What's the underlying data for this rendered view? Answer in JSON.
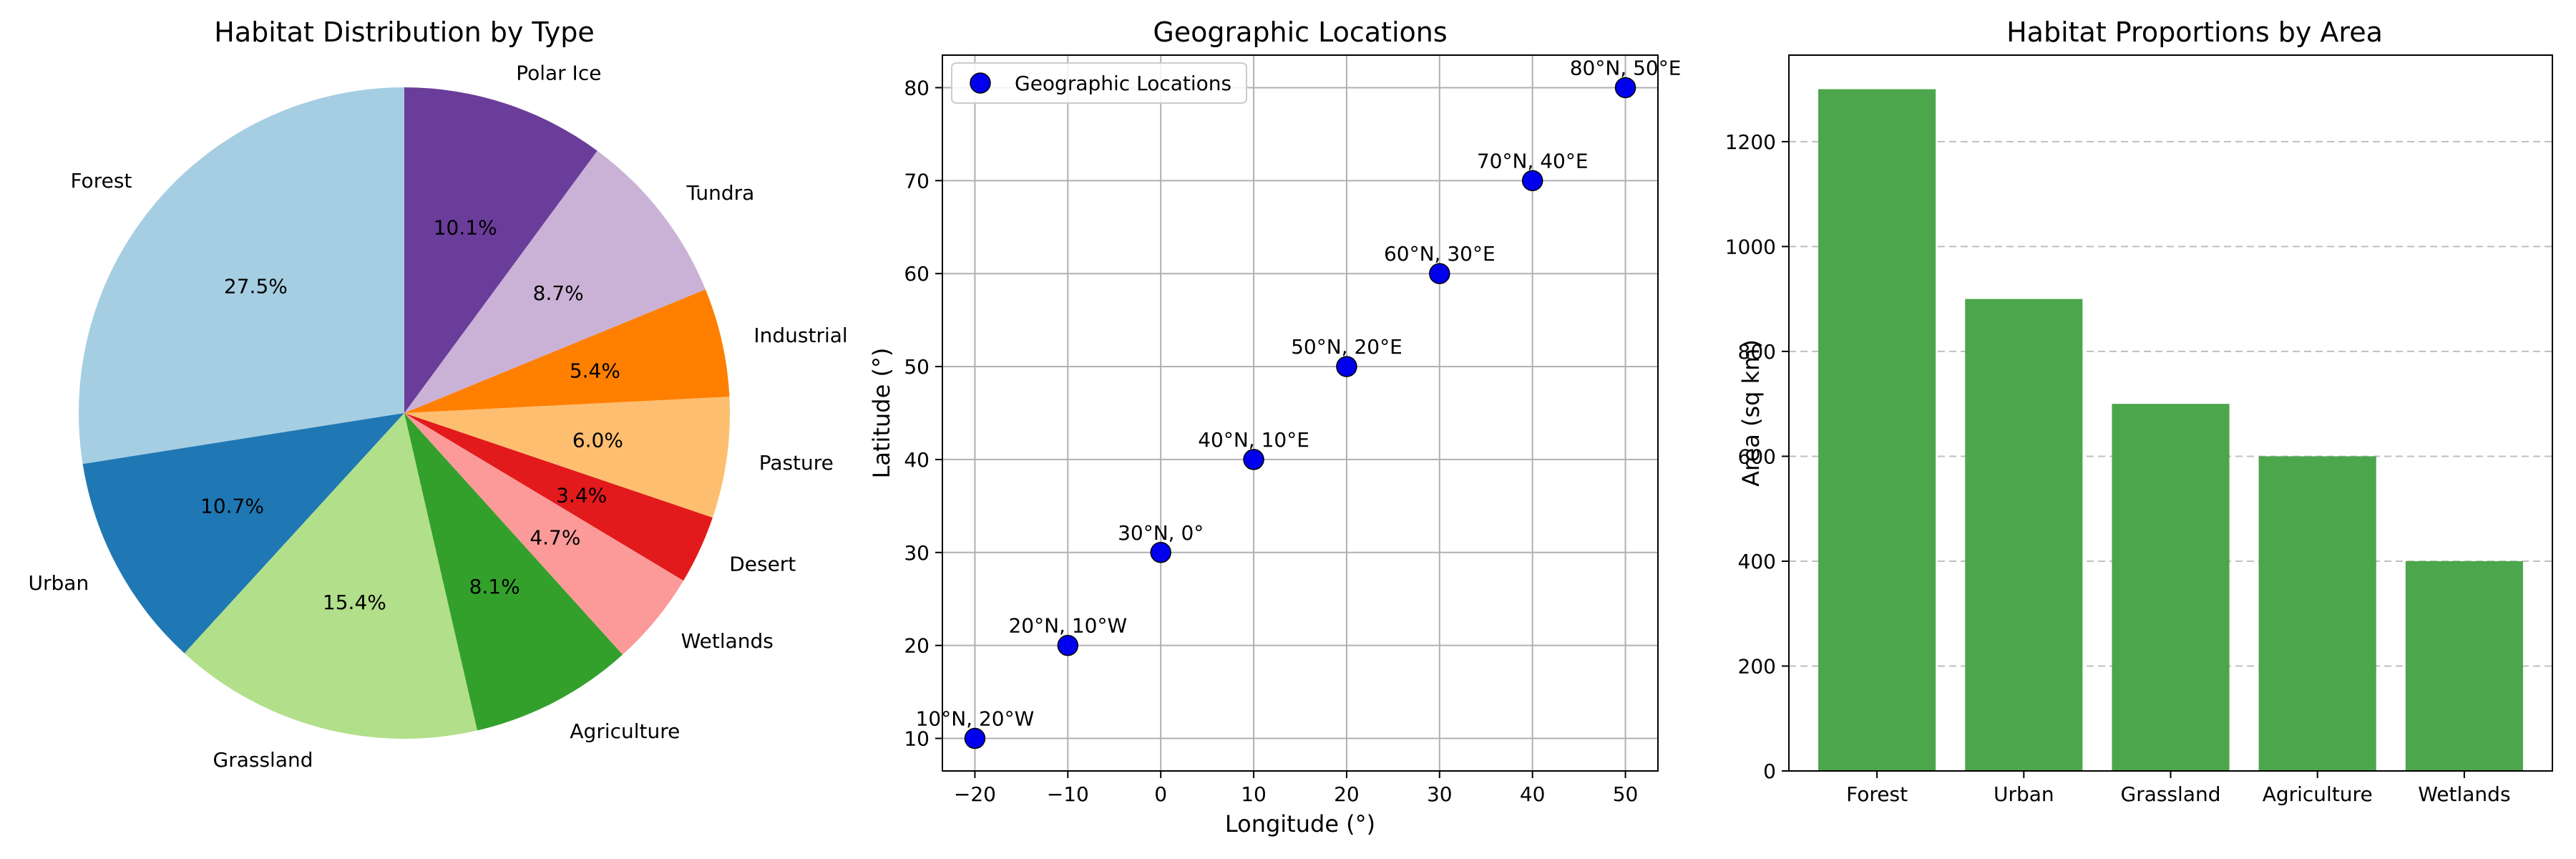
{
  "chart_data": [
    {
      "type": "pie",
      "title": "Habitat Distribution by Type",
      "start_angle_deg": 90,
      "direction": "counterclockwise",
      "slices": [
        {
          "label": "Forest",
          "value": 27.5,
          "pct_label": "27.5%",
          "color": "#a6cee3"
        },
        {
          "label": "Urban",
          "value": 10.7,
          "pct_label": "10.7%",
          "color": "#1f78b4"
        },
        {
          "label": "Grassland",
          "value": 15.4,
          "pct_label": "15.4%",
          "color": "#b2df8a"
        },
        {
          "label": "Agriculture",
          "value": 8.1,
          "pct_label": "8.1%",
          "color": "#33a02c"
        },
        {
          "label": "Wetlands",
          "value": 4.7,
          "pct_label": "4.7%",
          "color": "#fb9a99"
        },
        {
          "label": "Desert",
          "value": 3.4,
          "pct_label": "3.4%",
          "color": "#e31a1c"
        },
        {
          "label": "Pasture",
          "value": 6.0,
          "pct_label": "6.0%",
          "color": "#fdbf6f"
        },
        {
          "label": "Industrial",
          "value": 5.4,
          "pct_label": "5.4%",
          "color": "#ff7f00"
        },
        {
          "label": "Tundra",
          "value": 8.7,
          "pct_label": "8.7%",
          "color": "#cab2d6"
        },
        {
          "label": "Polar Ice",
          "value": 10.1,
          "pct_label": "10.1%",
          "color": "#6a3d9a"
        }
      ]
    },
    {
      "type": "scatter",
      "title": "Geographic Locations",
      "xlabel": "Longitude (°)",
      "ylabel": "Latitude (°)",
      "xlim": [
        -23.5,
        53.5
      ],
      "ylim": [
        6.5,
        83.5
      ],
      "xticks": [
        -20,
        -10,
        0,
        10,
        20,
        30,
        40,
        50
      ],
      "xtick_labels": [
        "−20",
        "−10",
        "0",
        "10",
        "20",
        "30",
        "40",
        "50"
      ],
      "yticks": [
        10,
        20,
        30,
        40,
        50,
        60,
        70,
        80
      ],
      "ytick_labels": [
        "10",
        "20",
        "30",
        "40",
        "50",
        "60",
        "70",
        "80"
      ],
      "grid": true,
      "legend": {
        "placement": "top-left",
        "entry": "Geographic Locations"
      },
      "marker_color": "#0000ee",
      "points": [
        {
          "x": -20,
          "y": 10,
          "label": "10°N, 20°W"
        },
        {
          "x": -10,
          "y": 20,
          "label": "20°N, 10°W"
        },
        {
          "x": 0,
          "y": 30,
          "label": "30°N, 0°"
        },
        {
          "x": 10,
          "y": 40,
          "label": "40°N, 10°E"
        },
        {
          "x": 20,
          "y": 50,
          "label": "50°N, 20°E"
        },
        {
          "x": 30,
          "y": 60,
          "label": "60°N, 30°E"
        },
        {
          "x": 40,
          "y": 70,
          "label": "70°N, 40°E"
        },
        {
          "x": 50,
          "y": 80,
          "label": "80°N, 50°E"
        }
      ]
    },
    {
      "type": "bar",
      "title": "Habitat Proportions by Area",
      "xlabel": "",
      "ylabel": "Area (sq km)",
      "categories": [
        "Forest",
        "Urban",
        "Grassland",
        "Agriculture",
        "Wetlands"
      ],
      "values": [
        1300,
        900,
        700,
        600,
        400
      ],
      "ylim": [
        0,
        1365
      ],
      "yticks": [
        0,
        200,
        400,
        600,
        800,
        1000,
        1200
      ],
      "grid": "y-dashed",
      "bar_color": "#4ca64c"
    }
  ]
}
